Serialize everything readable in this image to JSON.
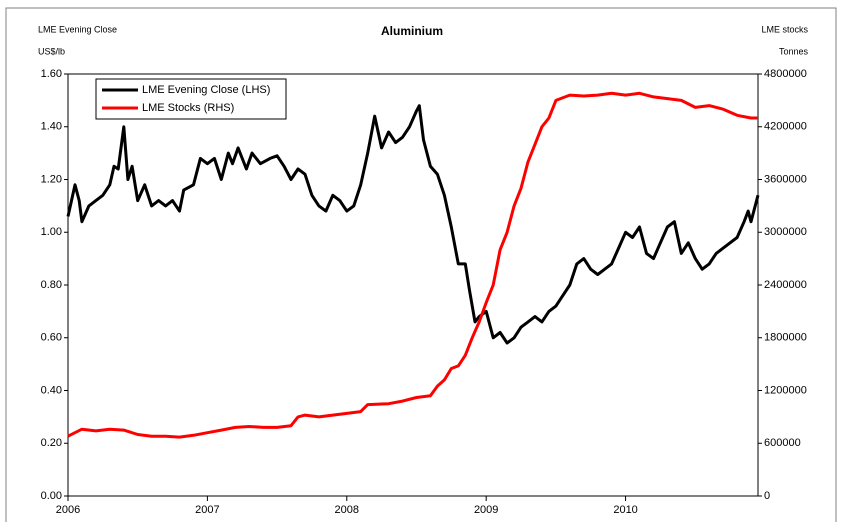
{
  "chart_data": {
    "type": "line",
    "title": "Aluminium",
    "y_axis_title": "LME Evening Close",
    "y_axis_unit": "US$/lb",
    "y2_axis_title": "LME stocks",
    "y2_axis_unit": "Tonnes",
    "xlim": [
      2006,
      2010.95
    ],
    "xticks": [
      2006,
      2007,
      2008,
      2009,
      2010
    ],
    "ylim": [
      0,
      1.6
    ],
    "yticks": [
      {
        "value": 0,
        "label": "0.00"
      },
      {
        "value": 0.2,
        "label": "0.20"
      },
      {
        "value": 0.4,
        "label": "0.40"
      },
      {
        "value": 0.6,
        "label": "0.60"
      },
      {
        "value": 0.8,
        "label": "0.80"
      },
      {
        "value": 1,
        "label": "1.00"
      },
      {
        "value": 1.2,
        "label": "1.20"
      },
      {
        "value": 1.4,
        "label": "1.40"
      },
      {
        "value": 1.6,
        "label": "1.60"
      }
    ],
    "y2lim": [
      0,
      4800000
    ],
    "y2ticks": [
      0,
      600000,
      1200000,
      1800000,
      2400000,
      3000000,
      3600000,
      4200000,
      4800000
    ],
    "legend": "upper left",
    "series": [
      {
        "name": "LME Evening Close (LHS)",
        "color": "#000000",
        "axis": "y",
        "x": [
          2006.0,
          2006.05,
          2006.08,
          2006.1,
          2006.15,
          2006.2,
          2006.25,
          2006.3,
          2006.33,
          2006.36,
          2006.4,
          2006.43,
          2006.46,
          2006.5,
          2006.55,
          2006.6,
          2006.65,
          2006.7,
          2006.75,
          2006.8,
          2006.83,
          2006.9,
          2006.95,
          2007.0,
          2007.05,
          2007.1,
          2007.15,
          2007.18,
          2007.22,
          2007.28,
          2007.32,
          2007.38,
          2007.45,
          2007.5,
          2007.55,
          2007.6,
          2007.65,
          2007.7,
          2007.75,
          2007.8,
          2007.85,
          2007.9,
          2007.95,
          2008.0,
          2008.05,
          2008.1,
          2008.15,
          2008.2,
          2008.25,
          2008.3,
          2008.35,
          2008.4,
          2008.45,
          2008.5,
          2008.52,
          2008.55,
          2008.6,
          2008.65,
          2008.7,
          2008.75,
          2008.8,
          2008.85,
          2008.88,
          2008.92,
          2008.95,
          2009.0,
          2009.05,
          2009.1,
          2009.15,
          2009.2,
          2009.25,
          2009.3,
          2009.35,
          2009.4,
          2009.45,
          2009.5,
          2009.55,
          2009.6,
          2009.65,
          2009.7,
          2009.75,
          2009.8,
          2009.85,
          2009.9,
          2009.95,
          2010.0,
          2010.05,
          2010.1,
          2010.15,
          2010.2,
          2010.25,
          2010.3,
          2010.35,
          2010.4,
          2010.45,
          2010.5,
          2010.55,
          2010.6,
          2010.65,
          2010.7,
          2010.75,
          2010.8,
          2010.85,
          2010.88,
          2010.9,
          2010.95
        ],
        "values": [
          1.06,
          1.18,
          1.12,
          1.04,
          1.1,
          1.12,
          1.14,
          1.18,
          1.25,
          1.24,
          1.4,
          1.2,
          1.25,
          1.12,
          1.18,
          1.1,
          1.12,
          1.1,
          1.12,
          1.08,
          1.16,
          1.18,
          1.28,
          1.26,
          1.28,
          1.2,
          1.3,
          1.26,
          1.32,
          1.24,
          1.3,
          1.26,
          1.28,
          1.29,
          1.25,
          1.2,
          1.24,
          1.22,
          1.14,
          1.1,
          1.08,
          1.14,
          1.12,
          1.08,
          1.1,
          1.18,
          1.3,
          1.44,
          1.32,
          1.38,
          1.34,
          1.36,
          1.4,
          1.46,
          1.48,
          1.35,
          1.25,
          1.22,
          1.14,
          1.02,
          0.88,
          0.88,
          0.78,
          0.66,
          0.68,
          0.7,
          0.6,
          0.62,
          0.58,
          0.6,
          0.64,
          0.66,
          0.68,
          0.66,
          0.7,
          0.72,
          0.76,
          0.8,
          0.88,
          0.9,
          0.86,
          0.84,
          0.86,
          0.88,
          0.94,
          1.0,
          0.98,
          1.02,
          0.92,
          0.9,
          0.96,
          1.02,
          1.04,
          0.92,
          0.96,
          0.9,
          0.86,
          0.88,
          0.92,
          0.94,
          0.96,
          0.98,
          1.04,
          1.08,
          1.04,
          1.14
        ]
      },
      {
        "name": "LME Stocks (RHS)",
        "color": "#ff0000",
        "axis": "y2",
        "x": [
          2006.0,
          2006.1,
          2006.2,
          2006.3,
          2006.4,
          2006.5,
          2006.6,
          2006.7,
          2006.8,
          2006.9,
          2007.0,
          2007.1,
          2007.2,
          2007.3,
          2007.4,
          2007.5,
          2007.6,
          2007.65,
          2007.7,
          2007.8,
          2007.9,
          2008.0,
          2008.1,
          2008.15,
          2008.3,
          2008.4,
          2008.5,
          2008.6,
          2008.65,
          2008.7,
          2008.75,
          2008.8,
          2008.85,
          2008.9,
          2008.95,
          2009.0,
          2009.05,
          2009.1,
          2009.15,
          2009.2,
          2009.25,
          2009.3,
          2009.35,
          2009.4,
          2009.45,
          2009.5,
          2009.6,
          2009.7,
          2009.8,
          2009.9,
          2010.0,
          2010.1,
          2010.2,
          2010.3,
          2010.4,
          2010.5,
          2010.6,
          2010.7,
          2010.8,
          2010.9,
          2010.95
        ],
        "values": [
          680000,
          760000,
          740000,
          760000,
          750000,
          700000,
          680000,
          680000,
          670000,
          690000,
          720000,
          750000,
          780000,
          790000,
          780000,
          780000,
          800000,
          900000,
          920000,
          900000,
          920000,
          940000,
          960000,
          1040000,
          1050000,
          1080000,
          1120000,
          1140000,
          1250000,
          1320000,
          1450000,
          1480000,
          1600000,
          1800000,
          1980000,
          2200000,
          2400000,
          2800000,
          3000000,
          3300000,
          3500000,
          3800000,
          4000000,
          4200000,
          4300000,
          4500000,
          4560000,
          4550000,
          4560000,
          4580000,
          4560000,
          4580000,
          4540000,
          4520000,
          4500000,
          4420000,
          4440000,
          4400000,
          4330000,
          4300000,
          4300000
        ]
      }
    ]
  }
}
